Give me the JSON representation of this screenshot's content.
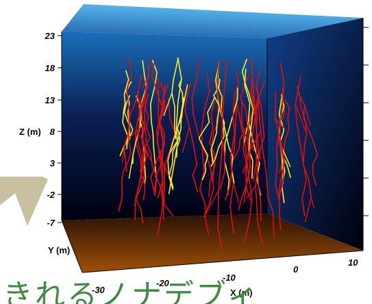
{
  "chart_data": {
    "type": "line",
    "subtype": "3d-root-architecture",
    "x_axis": {
      "label": "X (m)",
      "ticks": [
        "-30",
        "-20",
        "-10",
        "0",
        "10"
      ]
    },
    "y_axis": {
      "label": "Y (m)"
    },
    "z_axis": {
      "label": "Z (m)",
      "ticks": [
        "23",
        "18",
        "13",
        "8",
        "3",
        "-2",
        "-7"
      ]
    },
    "series": [
      {
        "color": "#e01010"
      },
      {
        "color": "#ffee22"
      }
    ],
    "colors": {
      "back_wall_top": "#1a6fb8",
      "back_wall_bottom": "#000010",
      "top_face": "#3fa0e0",
      "floor_front": "#a05008",
      "floor_back": "#3a1a08",
      "arrow": "#c8bfa0",
      "caption": "#3f8a3f"
    }
  },
  "caption_text": "きれるノナデブィ"
}
